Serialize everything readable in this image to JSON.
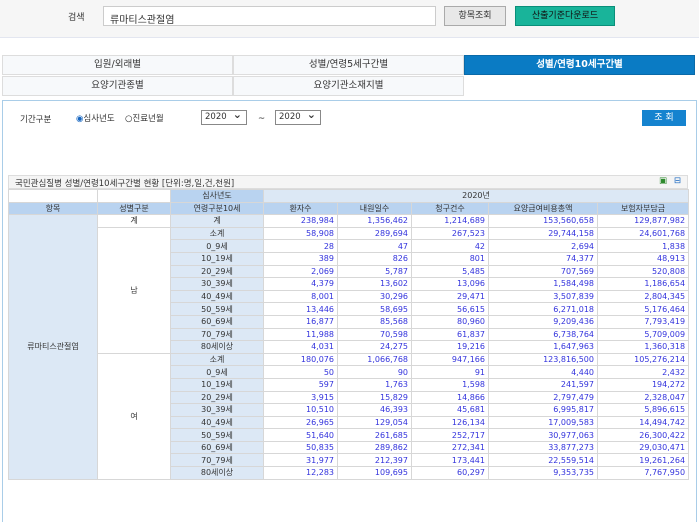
{
  "search": {
    "label": "검색",
    "value": "류마티스관절염",
    "query_button": "항목조회",
    "download_button": "산출기준다운로드"
  },
  "tabs": [
    {
      "label": "입원/외래별",
      "active": false
    },
    {
      "label": "성별/연령5세구간별",
      "active": false
    },
    {
      "label": "성별/연령10세구간별",
      "active": true
    },
    {
      "label": "요양기관종별",
      "active": false
    },
    {
      "label": "요양기관소재지별",
      "active": false
    }
  ],
  "filter": {
    "label": "기간구분",
    "radio1": "심사년도",
    "radio2": "진료년월",
    "radio_selected": "심사년도",
    "from": "2020",
    "tilde": "~",
    "to": "2020",
    "search_button": "조 회"
  },
  "table": {
    "title": "국민관심질병 성별/연령10세구간별 현황 [단위:명,일,건,천원]",
    "head_year_label": "심사년도",
    "year": "2020년",
    "headers": [
      "항목",
      "성별구분",
      "연령구분10세",
      "환자수",
      "내원일수",
      "청구건수",
      "요양급여비용총액",
      "보험자부담금"
    ],
    "item": "류마티스관절염",
    "total": {
      "sex": "계",
      "age": "계",
      "values": [
        "238,984",
        "1,356,462",
        "1,214,689",
        "153,560,658",
        "129,877,982"
      ]
    },
    "groups": [
      {
        "sex": "남",
        "rows": [
          {
            "age": "소계",
            "values": [
              "58,908",
              "289,694",
              "267,523",
              "29,744,158",
              "24,601,768"
            ]
          },
          {
            "age": "0_9세",
            "values": [
              "28",
              "47",
              "42",
              "2,694",
              "1,838"
            ]
          },
          {
            "age": "10_19세",
            "values": [
              "389",
              "826",
              "801",
              "74,377",
              "48,913"
            ]
          },
          {
            "age": "20_29세",
            "values": [
              "2,069",
              "5,787",
              "5,485",
              "707,569",
              "520,808"
            ]
          },
          {
            "age": "30_39세",
            "values": [
              "4,379",
              "13,602",
              "13,096",
              "1,584,498",
              "1,186,654"
            ]
          },
          {
            "age": "40_49세",
            "values": [
              "8,001",
              "30,296",
              "29,471",
              "3,507,839",
              "2,804,345"
            ]
          },
          {
            "age": "50_59세",
            "values": [
              "13,446",
              "58,695",
              "56,615",
              "6,271,018",
              "5,176,464"
            ]
          },
          {
            "age": "60_69세",
            "values": [
              "16,877",
              "85,568",
              "80,960",
              "9,209,436",
              "7,793,419"
            ]
          },
          {
            "age": "70_79세",
            "values": [
              "11,988",
              "70,598",
              "61,837",
              "6,738,764",
              "5,709,009"
            ]
          },
          {
            "age": "80세이상",
            "values": [
              "4,031",
              "24,275",
              "19,216",
              "1,647,963",
              "1,360,318"
            ]
          }
        ]
      },
      {
        "sex": "여",
        "rows": [
          {
            "age": "소계",
            "values": [
              "180,076",
              "1,066,768",
              "947,166",
              "123,816,500",
              "105,276,214"
            ]
          },
          {
            "age": "0_9세",
            "values": [
              "50",
              "90",
              "91",
              "4,440",
              "2,432"
            ]
          },
          {
            "age": "10_19세",
            "values": [
              "597",
              "1,763",
              "1,598",
              "241,597",
              "194,272"
            ]
          },
          {
            "age": "20_29세",
            "values": [
              "3,915",
              "15,829",
              "14,866",
              "2,797,479",
              "2,328,047"
            ]
          },
          {
            "age": "30_39세",
            "values": [
              "10,510",
              "46,393",
              "45,681",
              "6,995,817",
              "5,896,615"
            ]
          },
          {
            "age": "40_49세",
            "values": [
              "26,965",
              "129,054",
              "126,134",
              "17,009,583",
              "14,494,742"
            ]
          },
          {
            "age": "50_59세",
            "values": [
              "51,640",
              "261,685",
              "252,717",
              "30,977,063",
              "26,300,422"
            ]
          },
          {
            "age": "60_69세",
            "values": [
              "50,835",
              "289,862",
              "272,341",
              "33,877,273",
              "29,030,471"
            ]
          },
          {
            "age": "70_79세",
            "values": [
              "31,977",
              "212,397",
              "173,441",
              "22,559,514",
              "19,261,264"
            ]
          },
          {
            "age": "80세이상",
            "values": [
              "12,283",
              "109,695",
              "60,297",
              "9,353,735",
              "7,767,950"
            ]
          }
        ]
      }
    ]
  }
}
